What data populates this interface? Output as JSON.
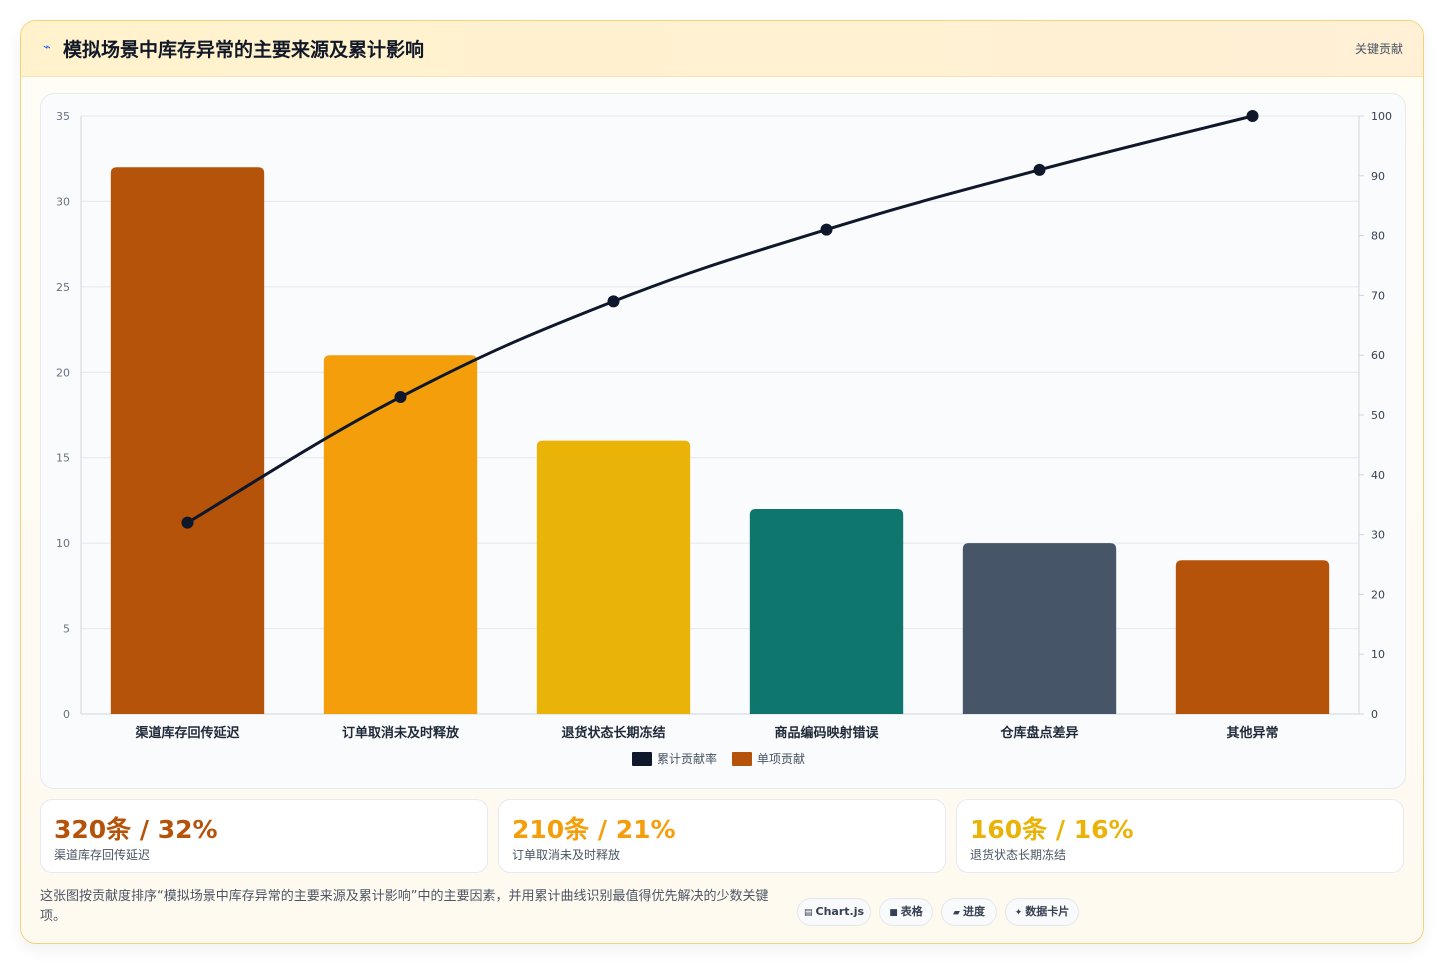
{
  "header": {
    "icon": "chart-line-icon",
    "title": "模拟场景中库存异常的主要来源及累计影响",
    "tag": "关键贡献"
  },
  "chart_data": {
    "type": "bar",
    "categories": [
      "渠道库存回传延迟",
      "订单取消未及时释放",
      "退货状态长期冻结",
      "商品编码映射错误",
      "仓库盘点差异",
      "其他异常"
    ],
    "series": [
      {
        "name": "单项贡献",
        "type": "bar",
        "axis": "left",
        "values": [
          32,
          21,
          16,
          12,
          10,
          9
        ],
        "colors": [
          "#b45309",
          "#f59e0b",
          "#eab308",
          "#0f766e",
          "#475569",
          "#b45309"
        ]
      },
      {
        "name": "累计贡献率",
        "type": "line",
        "axis": "right",
        "values": [
          32,
          53,
          69,
          81,
          91,
          100
        ],
        "color": "#0f172a"
      }
    ],
    "ylim": [
      0,
      35
    ],
    "yticks": [
      0,
      5,
      10,
      15,
      20,
      25,
      30,
      35
    ],
    "y2lim": [
      0,
      100
    ],
    "y2ticks": [
      0,
      10,
      20,
      30,
      40,
      50,
      60,
      70,
      80,
      90,
      100
    ],
    "grid": true,
    "legend": [
      {
        "label": "累计贡献率",
        "color": "#0f172a"
      },
      {
        "label": "单项贡献",
        "color": "#b45309"
      }
    ],
    "legend_position": "bottom"
  },
  "stats": [
    {
      "value": "320条 / 32%",
      "label": "渠道库存回传延迟",
      "color": "#b45309"
    },
    {
      "value": "210条 / 21%",
      "label": "订单取消未及时释放",
      "color": "#f59e0b"
    },
    {
      "value": "160条 / 16%",
      "label": "退货状态长期冻结",
      "color": "#eab308"
    }
  ],
  "footer": {
    "description": "这张图按贡献度排序“模拟场景中库存异常的主要来源及累计影响”中的主要因素，并用累计曲线识别最值得优先解决的少数关键项。",
    "chips": [
      {
        "icon": "▤",
        "label": "Chart.js"
      },
      {
        "icon": "■",
        "label": "表格"
      },
      {
        "icon": "▰",
        "label": "进度"
      },
      {
        "icon": "✦",
        "label": "数据卡片"
      }
    ]
  }
}
